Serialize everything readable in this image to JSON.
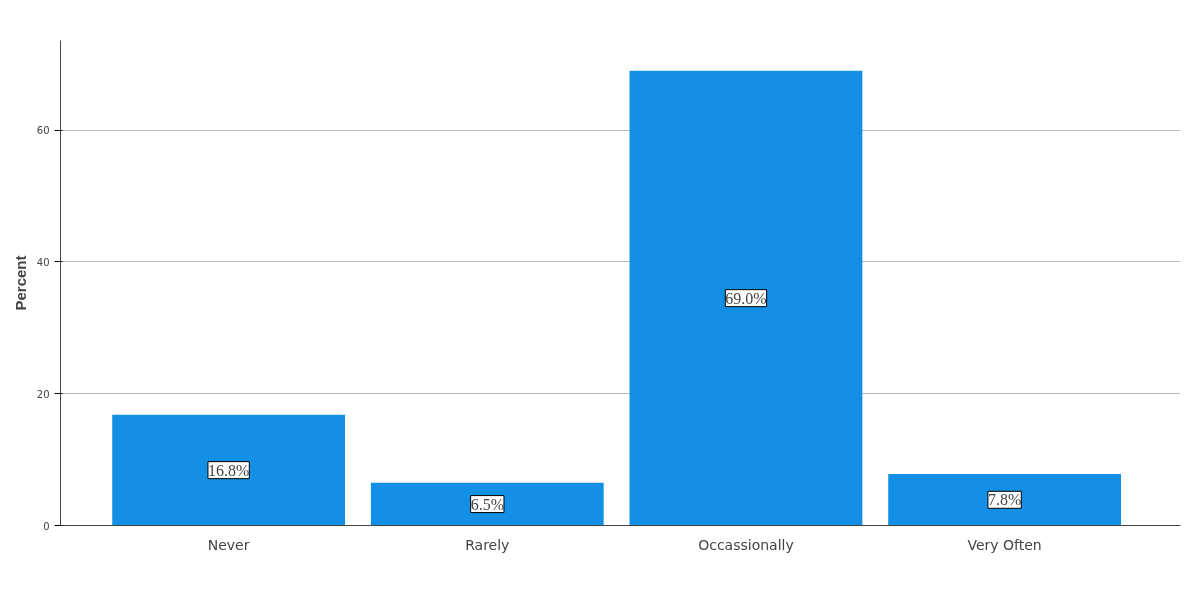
{
  "chart_data": {
    "type": "bar",
    "ylabel": "Percent",
    "categories": [
      "Never",
      "Rarely",
      "Occassionally",
      "Very Often"
    ],
    "values": [
      16.8,
      6.5,
      69.0,
      7.8
    ],
    "value_labels": [
      "16.8%",
      "6.5%",
      "69.0%",
      "7.8%"
    ],
    "color": "#1390e6",
    "ylim": [
      0,
      73.6
    ],
    "yticks": [
      0,
      20,
      40,
      60
    ],
    "grid": "y"
  }
}
